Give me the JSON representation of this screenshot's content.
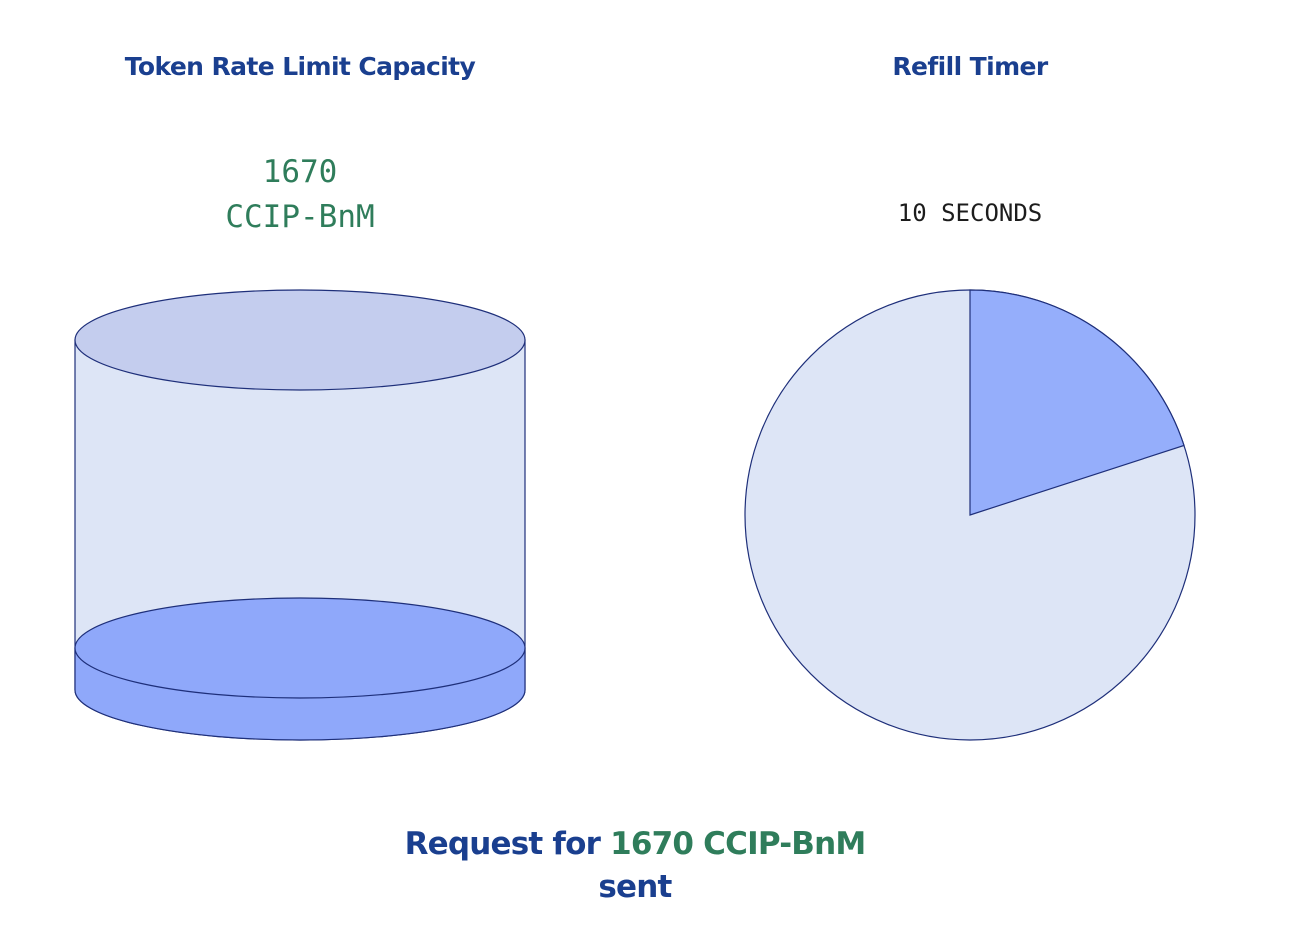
{
  "colors": {
    "heading": "#1a3f8f",
    "accent_green": "#2f7d5b",
    "mono_text": "#1c1c1c",
    "bucket_body": "#dde5f6",
    "bucket_top": "#c4cdee",
    "bucket_fill": "#8fa8fa",
    "outline": "#1e2f7a",
    "pie_background": "#dde5f6",
    "pie_filled": "#95aefb"
  },
  "capacity": {
    "title": "Token Rate Limit Capacity",
    "amount": "1670",
    "unit": "CCIP-BnM",
    "fill_fraction": 0.1
  },
  "timer": {
    "title": "Refill Timer",
    "label": "10 SECONDS",
    "elapsed_fraction": 0.2
  },
  "status": {
    "prefix": "Request for ",
    "highlight": "1670 CCIP-BnM",
    "line2": "sent"
  }
}
